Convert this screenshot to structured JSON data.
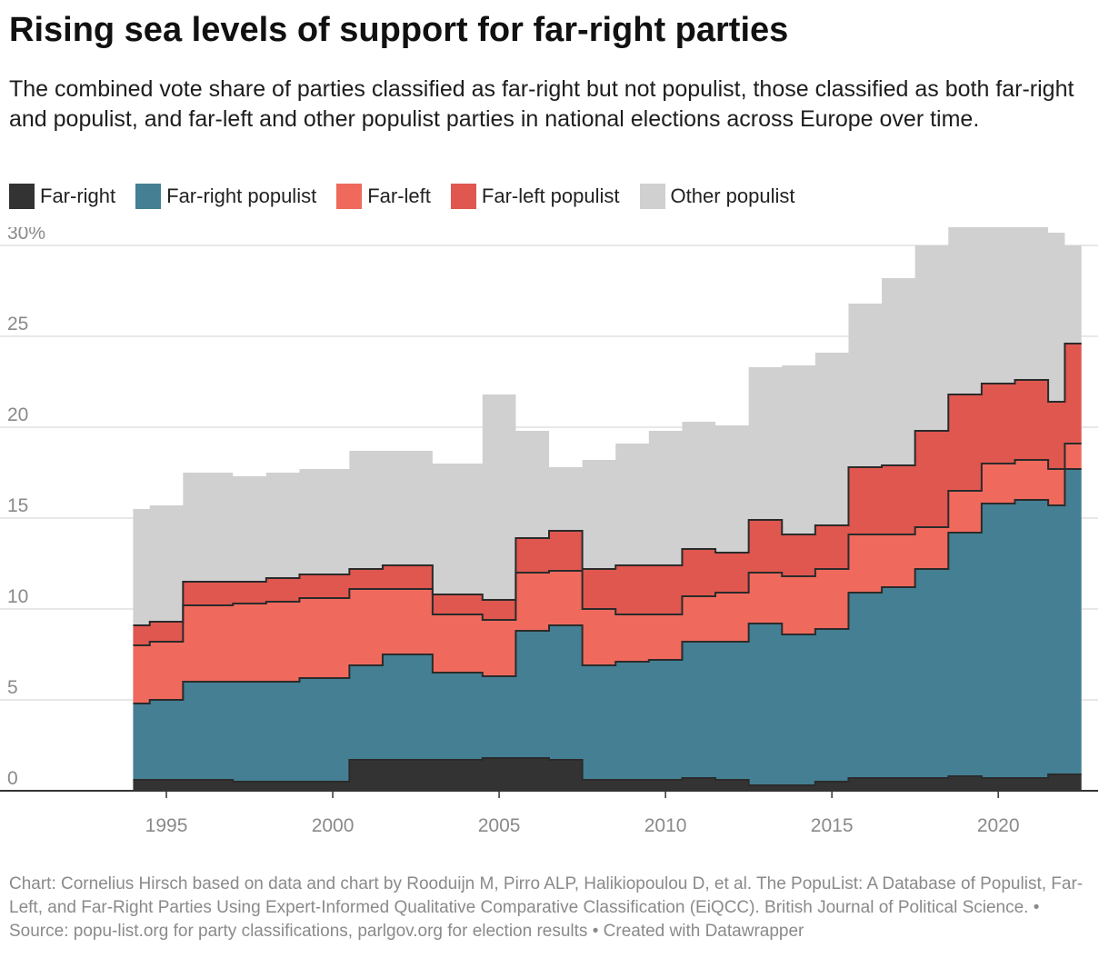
{
  "title": "Rising sea levels of support for far-right parties",
  "subtitle": "The combined vote share of parties classified as far-right but not populist, those classified as both far-right and populist, and far-left and other populist parties in national elections across Europe over time.",
  "footer": "Chart: Cornelius Hirsch based on data and chart by Rooduijn M, Pirro ALP, Halikiopoulou D, et al. The PopuList: A Database of Populist, Far-Left, and Far-Right Parties Using Expert-Informed Qualitative Comparative Classification (EiQCC). British Journal of Political Science. • Source: popu-list.org for party classifications, parlgov.org for election results • Created with Datawrapper",
  "colors": {
    "far_right": "#333333",
    "far_right_populist": "#447f93",
    "far_left": "#ef6a5d",
    "far_left_populist": "#e0574f",
    "other_populist": "#d0d0d0",
    "grid": "#e0e0e0",
    "axis_text": "#8a8a8a"
  },
  "chart_data": {
    "type": "area",
    "step": true,
    "stacked": true,
    "x": [
      1994.0,
      1994.5,
      1995.5,
      1997.0,
      1998.0,
      1999.0,
      2000.5,
      2001.5,
      2003.0,
      2003.5,
      2004.5,
      2005.5,
      2006.5,
      2007.5,
      2008.5,
      2009.5,
      2010.5,
      2011.5,
      2012.5,
      2013.5,
      2014.5,
      2015.5,
      2016.5,
      2017.5,
      2018.5,
      2019.5,
      2020.5,
      2021.5,
      2022.0
    ],
    "series": [
      {
        "name": "Far-right",
        "values": [
          0.6,
          0.6,
          0.6,
          0.5,
          0.5,
          0.5,
          1.7,
          1.7,
          1.7,
          1.7,
          1.8,
          1.8,
          1.7,
          0.6,
          0.6,
          0.6,
          0.7,
          0.6,
          0.3,
          0.3,
          0.5,
          0.7,
          0.7,
          0.7,
          0.8,
          0.7,
          0.7,
          0.9,
          0.9
        ]
      },
      {
        "name": "Far-right populist",
        "values": [
          4.2,
          4.4,
          5.4,
          5.5,
          5.5,
          5.7,
          5.2,
          5.8,
          4.8,
          4.8,
          4.5,
          7.0,
          7.4,
          6.3,
          6.5,
          6.6,
          7.5,
          7.6,
          8.9,
          8.3,
          8.4,
          10.2,
          10.5,
          11.5,
          13.4,
          15.1,
          15.3,
          14.8,
          16.8
        ]
      },
      {
        "name": "Far-left",
        "values": [
          3.2,
          3.2,
          4.2,
          4.3,
          4.4,
          4.4,
          4.2,
          3.6,
          3.2,
          3.2,
          3.1,
          3.2,
          3.0,
          3.1,
          2.6,
          2.5,
          2.5,
          2.7,
          2.8,
          3.2,
          3.3,
          3.2,
          2.9,
          2.3,
          2.3,
          2.2,
          2.2,
          2.0,
          1.4
        ]
      },
      {
        "name": "Far-left populist",
        "values": [
          1.1,
          1.1,
          1.3,
          1.2,
          1.3,
          1.3,
          1.1,
          1.3,
          1.1,
          1.1,
          1.1,
          1.9,
          2.2,
          2.2,
          2.7,
          2.7,
          2.6,
          2.2,
          2.9,
          2.3,
          2.4,
          3.7,
          3.8,
          5.3,
          5.3,
          4.4,
          4.4,
          3.7,
          5.5
        ]
      },
      {
        "name": "Other populist",
        "values": [
          6.4,
          6.4,
          6.0,
          5.8,
          5.8,
          5.8,
          6.5,
          6.3,
          7.2,
          7.2,
          11.3,
          5.9,
          3.5,
          6.0,
          6.7,
          7.4,
          7.0,
          7.0,
          8.4,
          9.3,
          9.5,
          9.0,
          10.3,
          10.2,
          9.5,
          10.0,
          10.0,
          9.3,
          5.4
        ]
      }
    ],
    "ylim": [
      0,
      31
    ],
    "yticks": [
      0,
      5,
      10,
      15,
      20,
      25,
      30
    ],
    "ytick_labels": [
      "0",
      "5",
      "10",
      "15",
      "20",
      "25",
      "30%"
    ],
    "xlim": [
      1990,
      2023
    ],
    "xticks": [
      1995,
      2000,
      2005,
      2010,
      2015,
      2020
    ],
    "xtick_labels": [
      "1995",
      "2000",
      "2005",
      "2010",
      "2015",
      "2020"
    ],
    "legend_position": "top-left",
    "grid": true
  }
}
